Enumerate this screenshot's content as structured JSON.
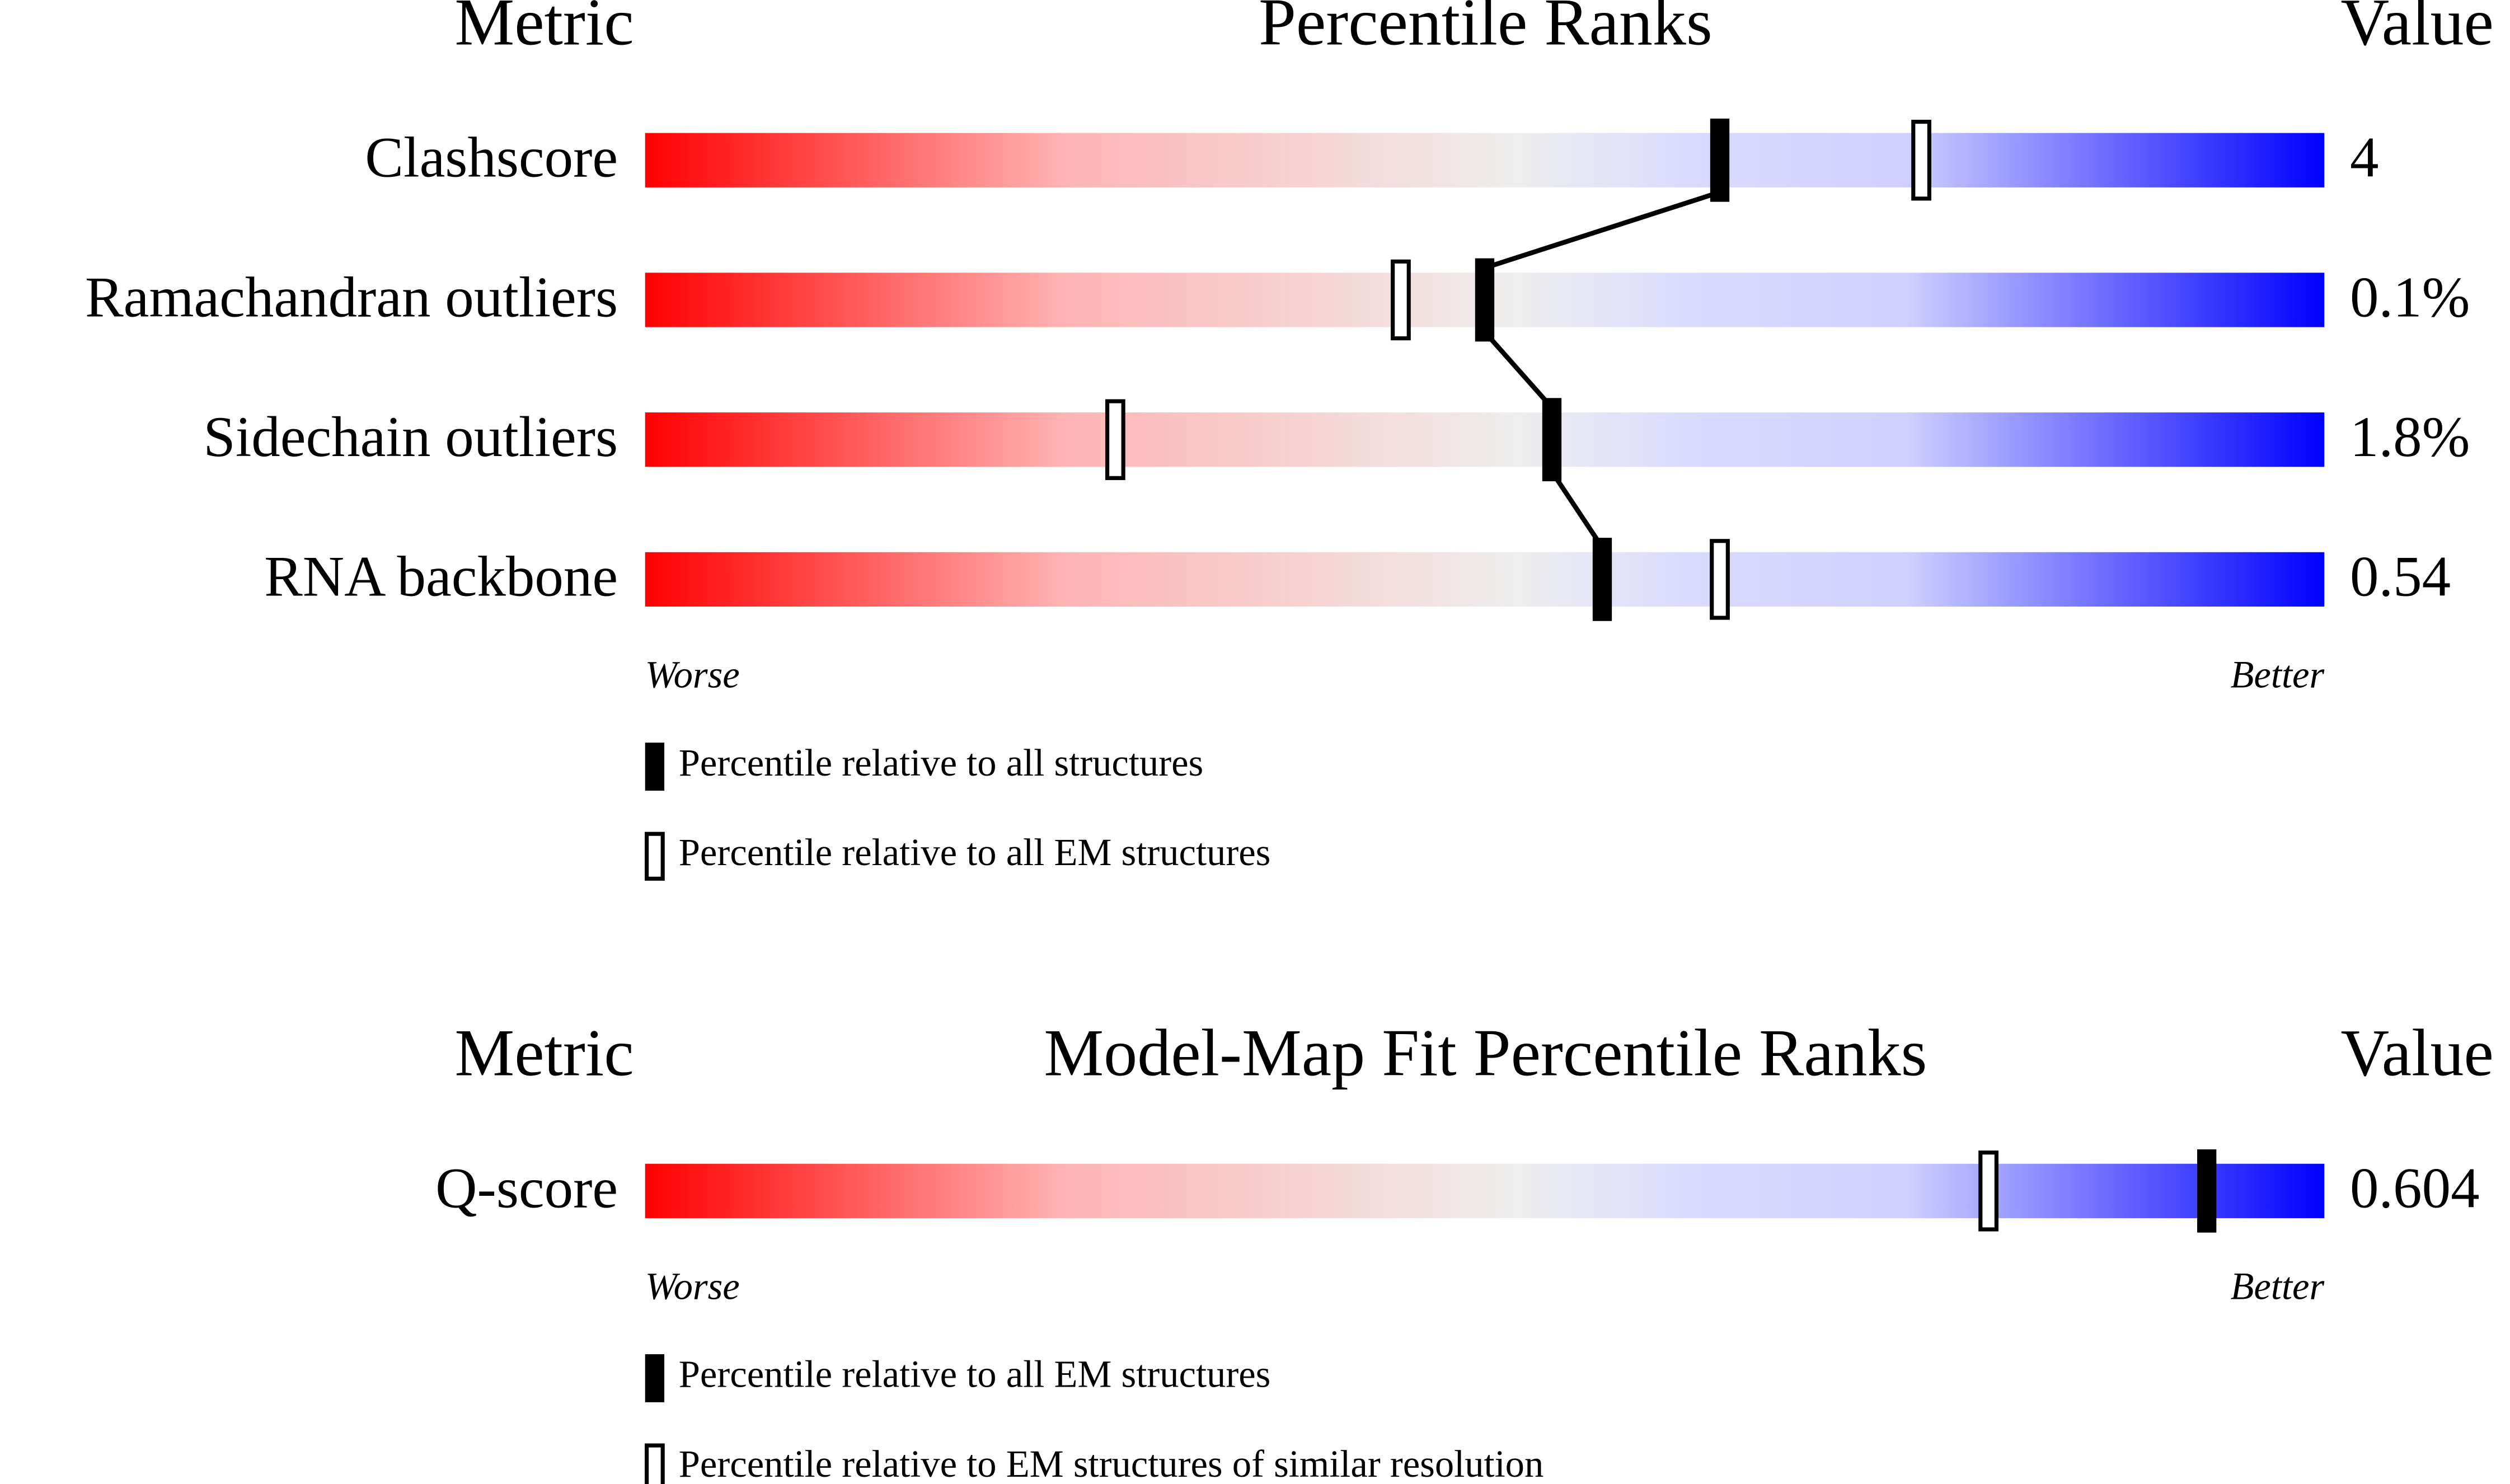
{
  "chart_data": [
    {
      "type": "percentile-slider",
      "title": "Percentile Ranks",
      "metric_header": "Metric",
      "value_header": "Value",
      "categories": [
        "Clashscore",
        "Ramachandran outliers",
        "Sidechain outliers",
        "RNA backbone"
      ],
      "metric_values": [
        "4",
        "0.1%",
        "1.8%",
        "0.54"
      ],
      "series": [
        {
          "name": "Percentile relative to all structures",
          "marker": "filled",
          "values": [
            64,
            50,
            54,
            57
          ]
        },
        {
          "name": "Percentile relative to all EM structures",
          "marker": "open",
          "values": [
            76,
            45,
            28,
            64
          ]
        }
      ],
      "low_label": "Worse",
      "high_label": "Better",
      "xlim": [
        0,
        100
      ]
    },
    {
      "type": "percentile-slider",
      "title": "Model-Map Fit Percentile Ranks",
      "metric_header": "Metric",
      "value_header": "Value",
      "categories": [
        "Q-score"
      ],
      "metric_values": [
        "0.604"
      ],
      "series": [
        {
          "name": "Percentile relative to all EM structures",
          "marker": "filled",
          "values": [
            93
          ]
        },
        {
          "name": "Percentile relative to EM structures of similar resolution",
          "marker": "open",
          "values": [
            80
          ]
        }
      ],
      "low_label": "Worse",
      "high_label": "Better",
      "xlim": [
        0,
        100
      ]
    }
  ]
}
